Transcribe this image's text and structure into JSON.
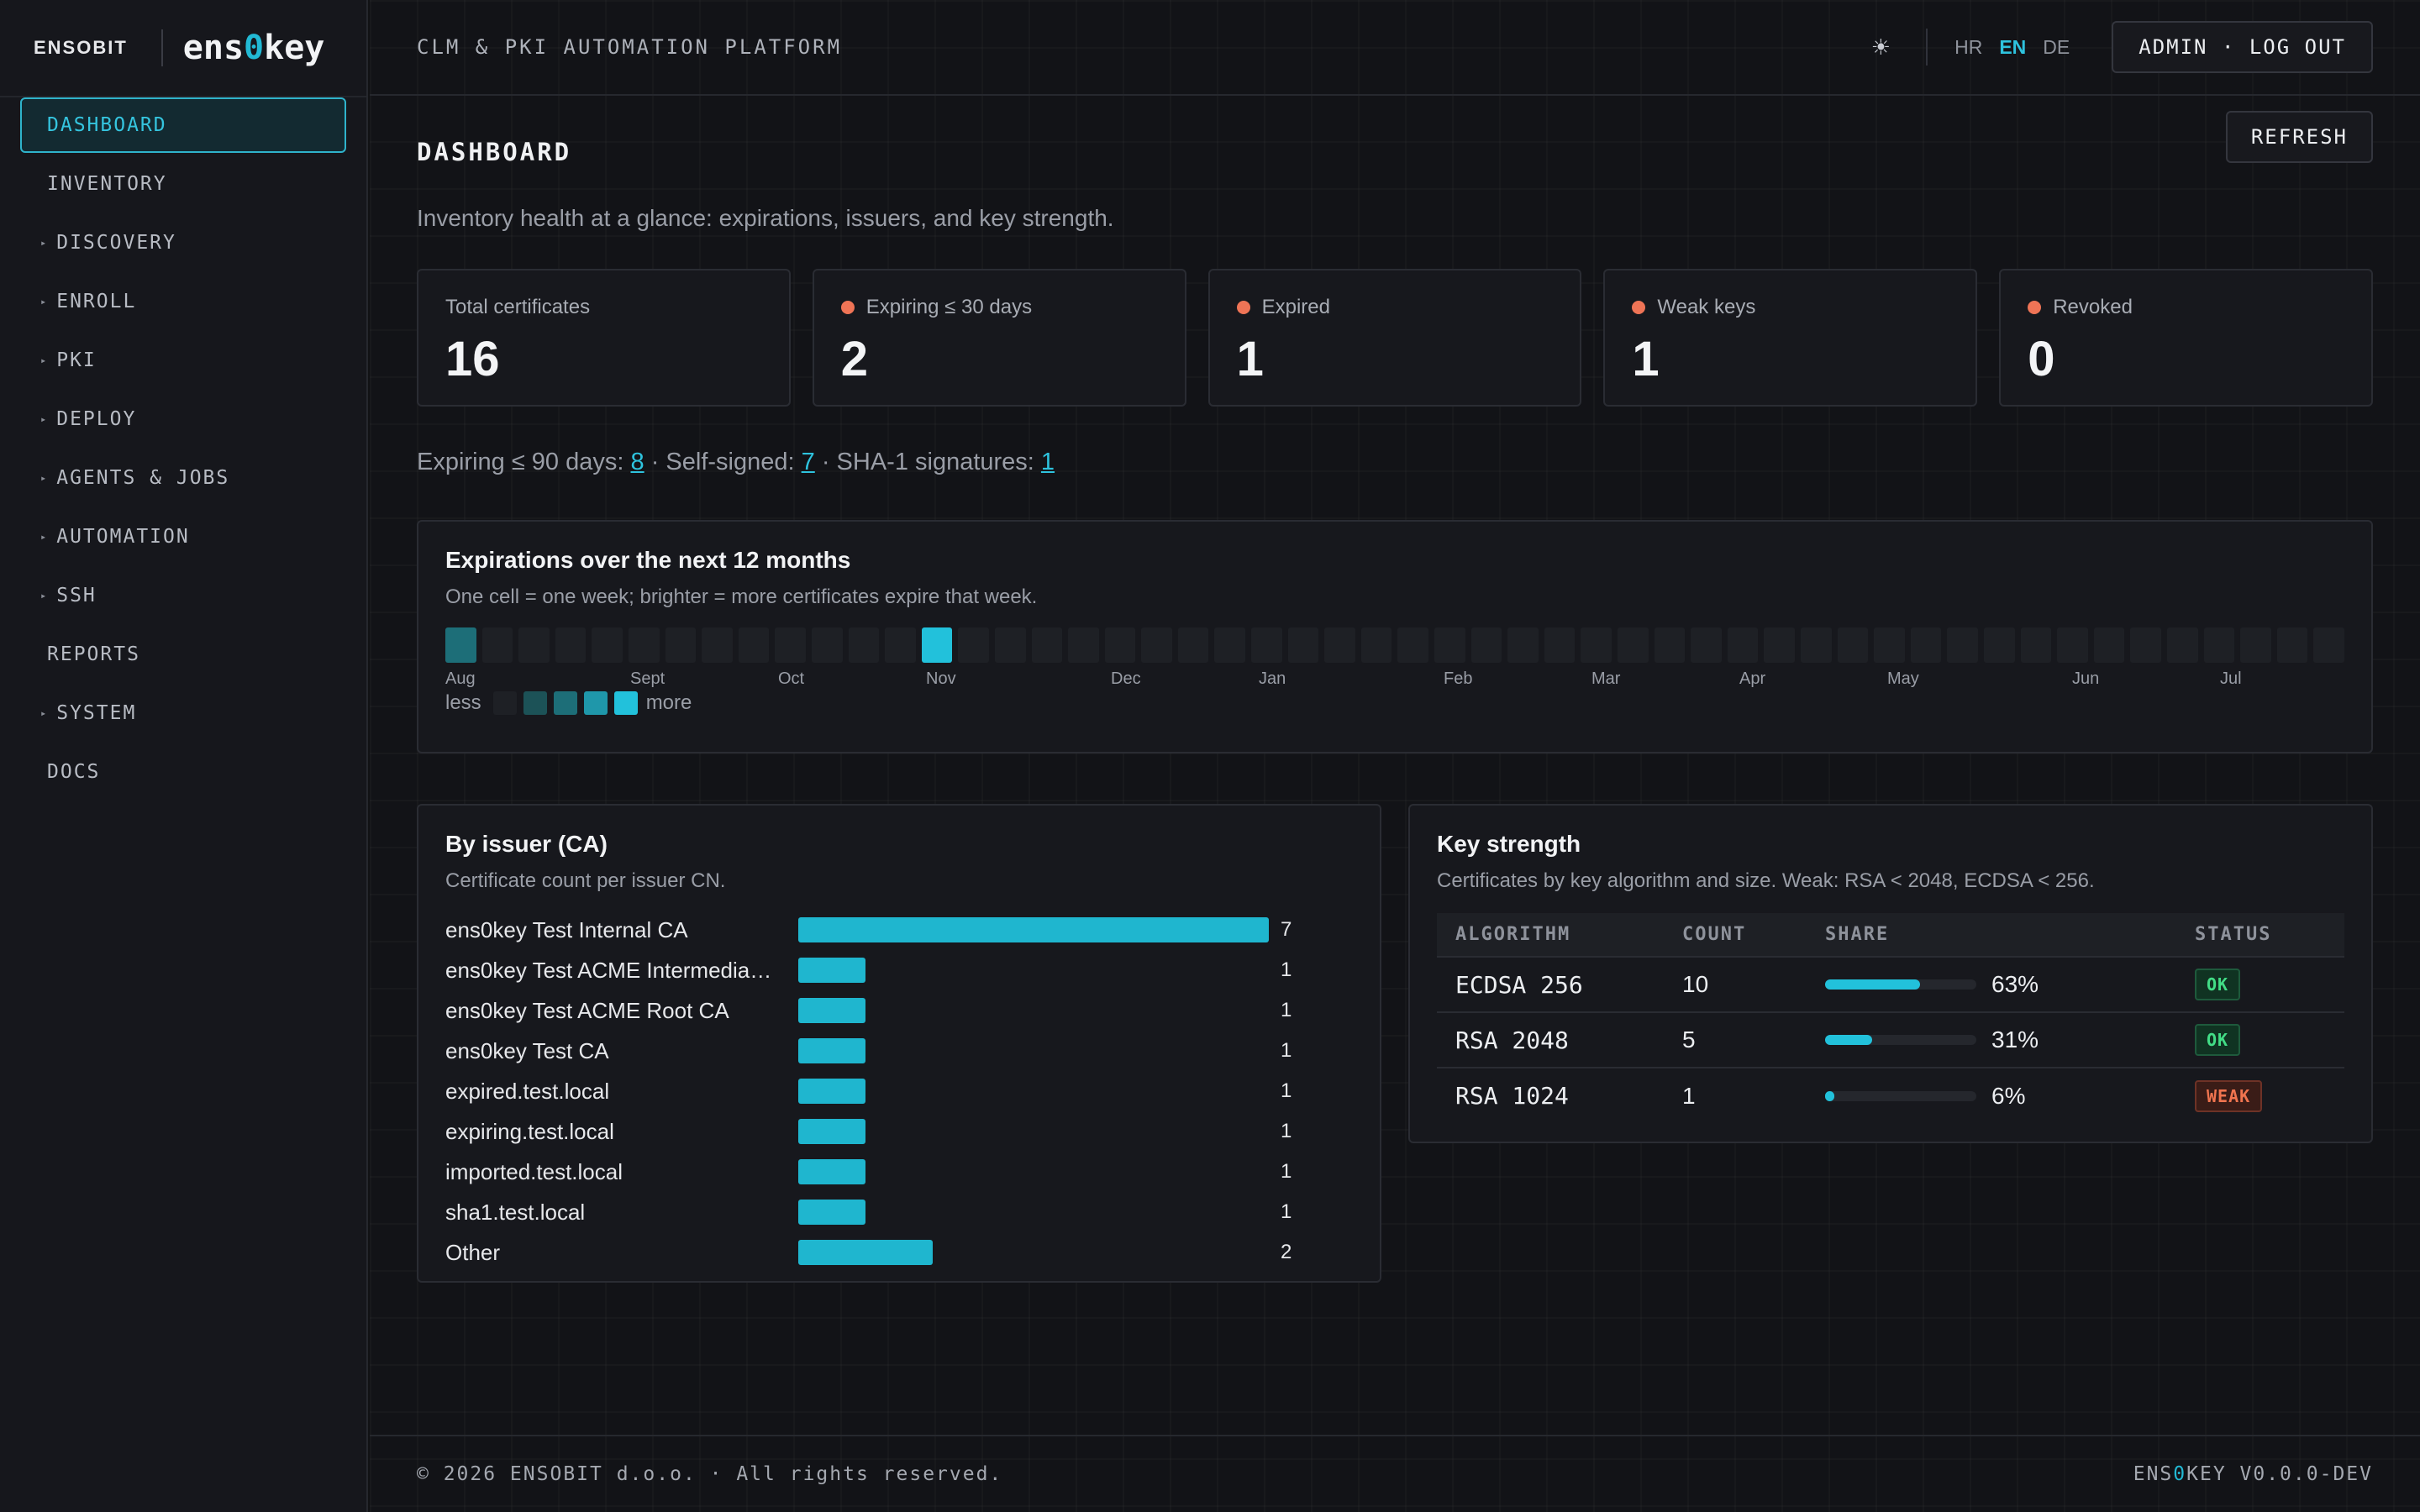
{
  "brand": {
    "corp": "ENSOBIT",
    "name_prefix": "ens",
    "name_zero": "0",
    "name_suffix": "key"
  },
  "nav": [
    {
      "label": "DASHBOARD",
      "active": true,
      "caret": false
    },
    {
      "label": "INVENTORY",
      "caret": false
    },
    {
      "label": "DISCOVERY",
      "caret": true
    },
    {
      "label": "ENROLL",
      "caret": true
    },
    {
      "label": "PKI",
      "caret": true
    },
    {
      "label": "DEPLOY",
      "caret": true
    },
    {
      "label": "AGENTS & JOBS",
      "caret": true
    },
    {
      "label": "AUTOMATION",
      "caret": true
    },
    {
      "label": "SSH",
      "caret": true
    },
    {
      "label": "REPORTS",
      "caret": false
    },
    {
      "label": "SYSTEM",
      "caret": true
    },
    {
      "label": "DOCS",
      "caret": false
    }
  ],
  "topbar": {
    "platform": "CLM & PKI AUTOMATION PLATFORM",
    "theme_icon": "sun-icon",
    "langs": [
      "HR",
      "EN",
      "DE"
    ],
    "active_lang": "EN",
    "logout": "ADMIN · LOG OUT"
  },
  "page": {
    "title": "DASHBOARD",
    "refresh": "REFRESH",
    "subtitle": "Inventory health at a glance: expirations, issuers, and key strength."
  },
  "stats": [
    {
      "label": "Total certificates",
      "value": "16",
      "dot": false
    },
    {
      "label": "Expiring ≤ 30 days",
      "value": "2",
      "dot": true
    },
    {
      "label": "Expired",
      "value": "1",
      "dot": true
    },
    {
      "label": "Weak keys",
      "value": "1",
      "dot": true
    },
    {
      "label": "Revoked",
      "value": "0",
      "dot": true
    }
  ],
  "summary": {
    "exp90_label": "Expiring ≤ 90 days: ",
    "exp90": "8",
    "sep1": " · Self-signed: ",
    "selfsigned": "7",
    "sep2": " · SHA-1 signatures: ",
    "sha1": "1"
  },
  "heatmap": {
    "title": "Expirations over the next 12 months",
    "subtitle": "One cell = one week; brighter = more certificates expire that week.",
    "weeks": [
      1,
      0,
      0,
      0,
      0,
      0,
      0,
      0,
      0,
      0,
      0,
      0,
      0,
      2,
      0,
      0,
      0,
      0,
      0,
      0,
      0,
      0,
      0,
      0,
      0,
      0,
      0,
      0,
      0,
      0,
      0,
      0,
      0,
      0,
      0,
      0,
      0,
      0,
      0,
      0,
      0,
      0,
      0,
      0,
      0,
      0,
      0,
      0,
      0,
      0,
      0,
      0
    ],
    "months": [
      {
        "label": "Aug",
        "week": 0
      },
      {
        "label": "Sept",
        "week": 5
      },
      {
        "label": "Oct",
        "week": 9
      },
      {
        "label": "Nov",
        "week": 13
      },
      {
        "label": "Dec",
        "week": 18
      },
      {
        "label": "Jan",
        "week": 22
      },
      {
        "label": "Feb",
        "week": 27
      },
      {
        "label": "Mar",
        "week": 31
      },
      {
        "label": "Apr",
        "week": 35
      },
      {
        "label": "May",
        "week": 39
      },
      {
        "label": "Jun",
        "week": 44
      },
      {
        "label": "Jul",
        "week": 48
      }
    ],
    "legend_less": "less",
    "legend_more": "more",
    "colors": [
      "#1e2025",
      "#1c5257",
      "#1d6e78",
      "#1f97aa",
      "#22c1db"
    ]
  },
  "issuers": {
    "title": "By issuer (CA)",
    "subtitle": "Certificate count per issuer CN.",
    "max": 7,
    "rows": [
      {
        "name": "ens0key Test Internal CA",
        "count": 7
      },
      {
        "name": "ens0key Test ACME Intermedia…",
        "count": 1
      },
      {
        "name": "ens0key Test ACME Root CA",
        "count": 1
      },
      {
        "name": "ens0key Test CA",
        "count": 1
      },
      {
        "name": "expired.test.local",
        "count": 1
      },
      {
        "name": "expiring.test.local",
        "count": 1
      },
      {
        "name": "imported.test.local",
        "count": 1
      },
      {
        "name": "sha1.test.local",
        "count": 1
      },
      {
        "name": "Other",
        "count": 2
      }
    ]
  },
  "keys": {
    "title": "Key strength",
    "subtitle": "Certificates by key algorithm and size. Weak: RSA < 2048, ECDSA < 256.",
    "headers": [
      "ALGORITHM",
      "COUNT",
      "SHARE",
      "STATUS"
    ],
    "rows": [
      {
        "algorithm": "ECDSA 256",
        "count": "10",
        "share": 63,
        "share_label": "63%",
        "status": "OK",
        "weak": false
      },
      {
        "algorithm": "RSA 2048",
        "count": "5",
        "share": 31,
        "share_label": "31%",
        "status": "OK",
        "weak": false
      },
      {
        "algorithm": "RSA 1024",
        "count": "1",
        "share": 6,
        "share_label": "6%",
        "status": "WEAK",
        "weak": true
      }
    ]
  },
  "footer": {
    "copyright": "© 2026 ENSOBIT d.o.o. · All rights reserved.",
    "version_prefix": "ENS",
    "version_zero": "0",
    "version_suffix": "KEY V0.0.0-DEV"
  }
}
